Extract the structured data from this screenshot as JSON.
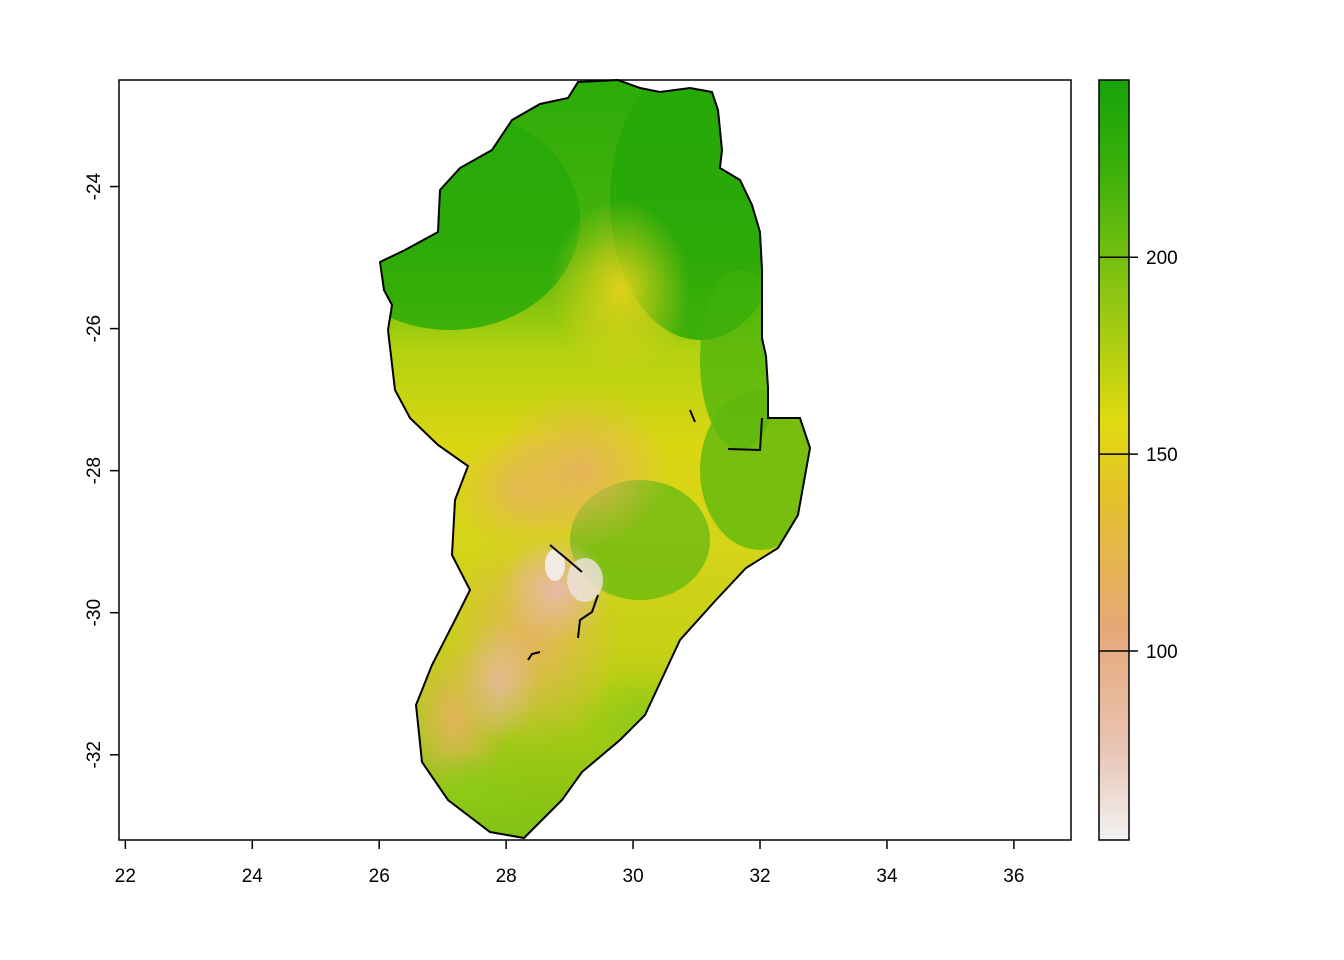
{
  "map": {
    "x_ticks": [
      "22",
      "24",
      "26",
      "28",
      "30",
      "32",
      "34",
      "36"
    ],
    "y_ticks": [
      "-24",
      "-26",
      "-28",
      "-30",
      "-32"
    ],
    "xlim": [
      21.9,
      36.9
    ],
    "ylim": [
      -33.2,
      -22.5
    ],
    "colors": {
      "low": "#f2f2f2",
      "mid_low": "#e9a976",
      "mid": "#e6d814",
      "high": "#1aa50a",
      "region_green": "#32ad08",
      "region_yellowgreen": "#9fcc12",
      "region_yellow": "#e1d41c",
      "region_orange": "#e4b654",
      "region_pink": "#e6ab8e",
      "border": "#000000"
    }
  },
  "legend": {
    "ticks": [
      "200",
      "150",
      "100"
    ],
    "values": [
      200,
      150,
      100
    ],
    "range": [
      52,
      245
    ]
  }
}
